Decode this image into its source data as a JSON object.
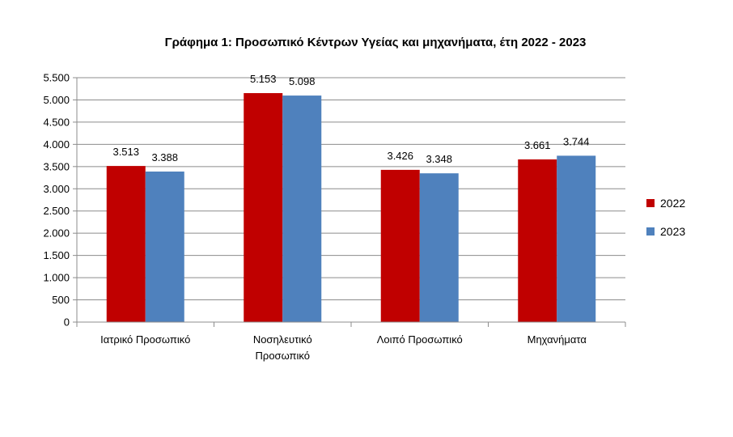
{
  "chart_data": {
    "type": "bar",
    "title": "Γράφημα 1: Προσωπικό Κέντρων Υγείας και μηχανήματα, έτη 2022 - 2023",
    "xlabel": "",
    "ylabel": "",
    "categories": [
      [
        "Ιατρικό Προσωπικό"
      ],
      [
        "Νοσηλευτικό",
        "Προσωπικό"
      ],
      [
        "Λοιπό Προσωπικό"
      ],
      [
        "Μηχανήματα"
      ]
    ],
    "series": [
      {
        "name": "2022",
        "color": "#c00000",
        "values": [
          3513,
          5153,
          3426,
          3661
        ],
        "labels": [
          "3.513",
          "5.153",
          "3.426",
          "3.661"
        ]
      },
      {
        "name": "2023",
        "color": "#4f81bd",
        "values": [
          3388,
          5098,
          3348,
          3744
        ],
        "labels": [
          "3.388",
          "5.098",
          "3.348",
          "3.744"
        ]
      }
    ],
    "ylim": [
      0,
      5500
    ],
    "yticks": [
      0,
      500,
      1000,
      1500,
      2000,
      2500,
      3000,
      3500,
      4000,
      4500,
      5000,
      5500
    ],
    "ytick_labels": [
      "0",
      "500",
      "1.000",
      "1.500",
      "2.000",
      "2.500",
      "3.000",
      "3.500",
      "4.000",
      "4.500",
      "5.000",
      "5.500"
    ],
    "grid": true,
    "legend_position": "right"
  }
}
